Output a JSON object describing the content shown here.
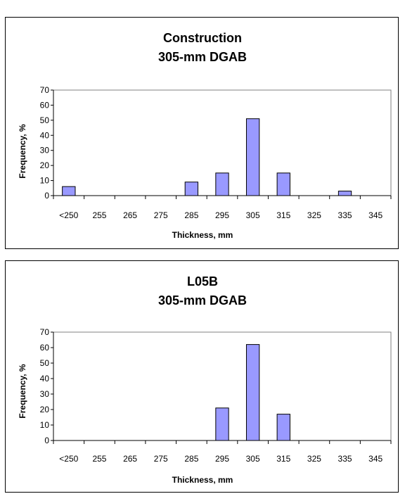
{
  "chart_data": [
    {
      "type": "bar",
      "title": "Construction",
      "subtitle": "305-mm DGAB",
      "xlabel": "Thickness, mm",
      "ylabel": "Frequency, %",
      "ylim": [
        0,
        70
      ],
      "yticks": [
        0,
        10,
        20,
        30,
        40,
        50,
        60,
        70
      ],
      "categories": [
        "<250",
        "255",
        "265",
        "275",
        "285",
        "295",
        "305",
        "315",
        "325",
        "335",
        "345"
      ],
      "values": [
        6,
        0,
        0,
        0,
        9,
        15,
        51,
        15,
        0,
        3,
        0
      ],
      "bar_color": "#9999ff",
      "grid": false,
      "legend": "none"
    },
    {
      "type": "bar",
      "title": "L05B",
      "subtitle": "305-mm DGAB",
      "xlabel": "Thickness, mm",
      "ylabel": "Frequency, %",
      "ylim": [
        0,
        70
      ],
      "yticks": [
        0,
        10,
        20,
        30,
        40,
        50,
        60,
        70
      ],
      "categories": [
        "<250",
        "255",
        "265",
        "275",
        "285",
        "295",
        "305",
        "315",
        "325",
        "335",
        "345"
      ],
      "values": [
        0,
        0,
        0,
        0,
        0,
        21,
        62,
        17,
        0,
        0,
        0
      ],
      "bar_color": "#9999ff",
      "grid": false,
      "legend": "none"
    }
  ]
}
